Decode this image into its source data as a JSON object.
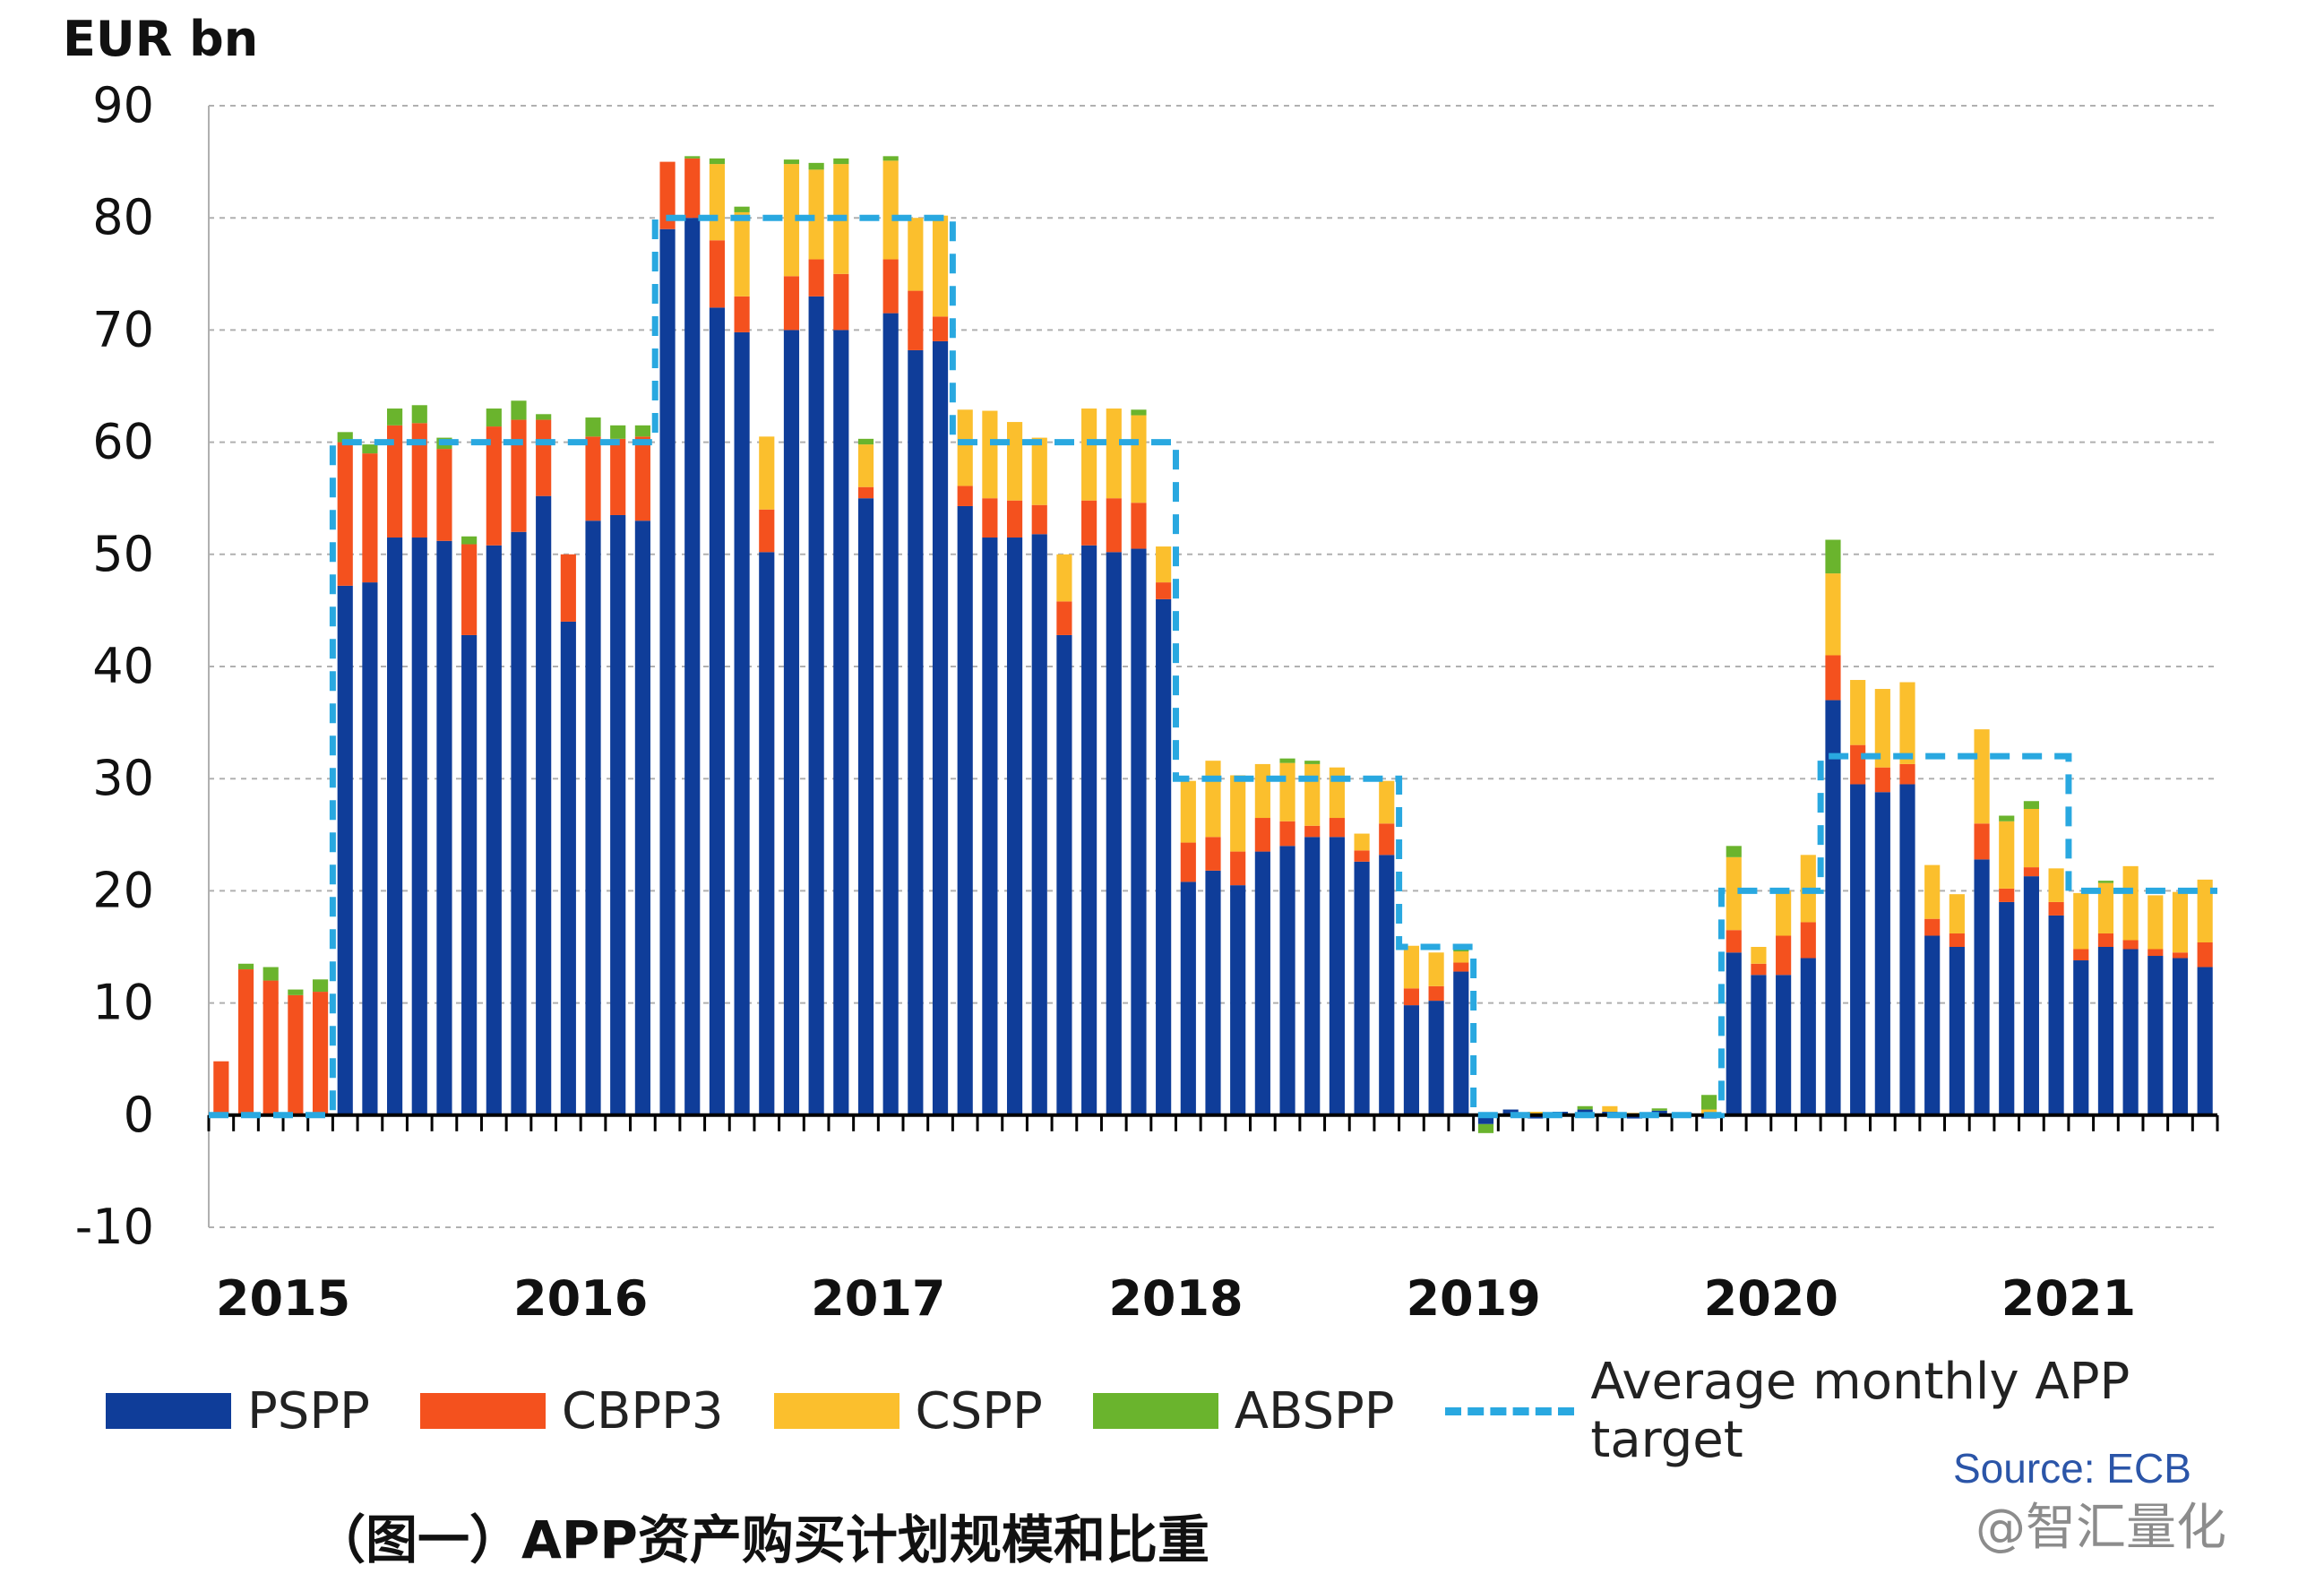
{
  "chart_data": {
    "type": "bar",
    "stacked": true,
    "yunit": "EUR bn",
    "ylim": [
      -10,
      90
    ],
    "yticks": [
      -10,
      0,
      10,
      20,
      30,
      40,
      50,
      60,
      70,
      80,
      90
    ],
    "grid": true,
    "legend_position": "bottom",
    "year_labels": [
      {
        "label": "2015",
        "at_month": 3
      },
      {
        "label": "2016",
        "at_month": 15
      },
      {
        "label": "2017",
        "at_month": 27
      },
      {
        "label": "2018",
        "at_month": 39
      },
      {
        "label": "2019",
        "at_month": 51
      },
      {
        "label": "2020",
        "at_month": 63
      },
      {
        "label": "2021",
        "at_month": 75
      }
    ],
    "n_months": 81,
    "series": [
      {
        "name": "PSPP",
        "color": "#0f3d99",
        "values": [
          0,
          0,
          0,
          0,
          0,
          47.2,
          47.5,
          51.5,
          51.5,
          51.2,
          42.8,
          50.8,
          52,
          55.2,
          44,
          53,
          53.5,
          53,
          79,
          80,
          72,
          69.8,
          50.2,
          70,
          73,
          70,
          55,
          71.5,
          68.2,
          69,
          54.3,
          51.5,
          51.5,
          51.8,
          42.8,
          50.8,
          50.2,
          50.5,
          46,
          20.8,
          21.8,
          20.5,
          23.5,
          24,
          24.8,
          24.8,
          22.6,
          23.2,
          9.8,
          10.2,
          12.8,
          -0.8,
          0.5,
          -0.3,
          0.3,
          0.5,
          0.3,
          -0.3,
          0.4,
          0.2,
          -0.3,
          14.5,
          12.5,
          12.5,
          14,
          37,
          29.5,
          28.8,
          29.5,
          16,
          15,
          22.8,
          19,
          21.3,
          17.8,
          13.8,
          15,
          14.8,
          14.2,
          14,
          13.2
        ]
      },
      {
        "name": "CBPP3",
        "color": "#f4511e",
        "values": [
          4.8,
          13,
          12,
          10.7,
          11,
          12.8,
          11.5,
          10,
          10.2,
          8.2,
          8.1,
          10.6,
          10,
          6.8,
          6,
          7.5,
          6.8,
          7.5,
          6,
          5.3,
          6,
          3.2,
          3.8,
          4.8,
          3.3,
          5,
          1,
          4.8,
          5.3,
          2.2,
          1.8,
          3.5,
          3.3,
          2.6,
          3,
          4,
          4.8,
          4.1,
          1.5,
          3.5,
          3,
          3,
          3,
          2.2,
          1,
          1.7,
          1,
          2.8,
          1.5,
          1.3,
          0.8,
          0,
          0,
          0,
          0,
          0,
          0,
          0,
          0,
          0,
          0,
          2,
          1,
          3.5,
          3.2,
          4,
          3.5,
          2.2,
          1.8,
          1.5,
          1.2,
          3.2,
          1.2,
          0.8,
          1.2,
          1,
          1.2,
          0.8,
          0.6,
          0.5,
          2.2
        ]
      },
      {
        "name": "CSPP",
        "color": "#fbbf2d",
        "values": [
          0,
          0,
          0,
          0,
          0,
          0,
          0,
          0,
          0,
          0,
          0,
          0,
          0,
          0,
          0,
          0,
          0,
          0,
          0,
          0,
          6.8,
          7.5,
          6.5,
          10,
          8,
          9.8,
          3.8,
          8.8,
          6.5,
          9,
          6.8,
          7.8,
          7,
          6,
          4.2,
          8.2,
          8,
          7.8,
          3.2,
          5.5,
          6.8,
          6.8,
          4.8,
          5.2,
          5.5,
          4.5,
          1.5,
          3.8,
          3.8,
          3,
          1,
          0,
          0,
          0.3,
          0,
          0,
          0.5,
          0.2,
          0,
          0,
          0.5,
          6.5,
          1.5,
          4,
          6,
          7.3,
          5.8,
          7,
          7.3,
          4.8,
          3.5,
          8.4,
          6,
          5.2,
          3,
          5,
          4.5,
          6.6,
          4.8,
          5.4,
          5.6
        ]
      },
      {
        "name": "ABSPP",
        "color": "#6ab42d",
        "values": [
          0,
          0.5,
          1.2,
          0.5,
          1.1,
          0.9,
          0.8,
          1.5,
          1.6,
          1,
          0.7,
          1.6,
          1.7,
          0.5,
          0,
          1.7,
          1.2,
          1,
          0,
          0.2,
          0.5,
          0.5,
          0,
          0.4,
          0.6,
          0.5,
          0.5,
          0.4,
          0,
          0,
          0,
          0,
          0,
          0,
          0,
          0,
          0,
          0.5,
          0,
          0,
          0,
          0,
          0,
          0.4,
          0.3,
          0,
          0,
          0,
          0,
          0,
          0.5,
          -0.8,
          0,
          0,
          0,
          0.3,
          0,
          0,
          0.2,
          0,
          1.3,
          1,
          0,
          0,
          0,
          3,
          0,
          0,
          0,
          0,
          0,
          0,
          0.5,
          0.7,
          0,
          0,
          0.2,
          0,
          0,
          0,
          0
        ]
      }
    ],
    "target": {
      "name": "Average monthly APP target",
      "color": "#29a8e0",
      "values": [
        0,
        0,
        0,
        0,
        0,
        60,
        60,
        60,
        60,
        60,
        60,
        60,
        60,
        60,
        60,
        60,
        60,
        60,
        80,
        80,
        80,
        80,
        80,
        80,
        80,
        80,
        80,
        80,
        80,
        80,
        60,
        60,
        60,
        60,
        60,
        60,
        60,
        60,
        60,
        30,
        30,
        30,
        30,
        30,
        30,
        30,
        30,
        30,
        15,
        15,
        15,
        0,
        0,
        0,
        0,
        0,
        0,
        0,
        0,
        0,
        0,
        20,
        20,
        20,
        20,
        32,
        32,
        32,
        32,
        32,
        32,
        32,
        32,
        32,
        32,
        20,
        20,
        20,
        20,
        20,
        20
      ]
    }
  },
  "legend": {
    "pspp": "PSPP",
    "cbpp3": "CBPP3",
    "cspp": "CSPP",
    "abspp": "ABSPP",
    "target": "Average monthly APP target"
  },
  "unit_label": "EUR bn",
  "source": "Source: ECB",
  "caption": "（图一）APP资产购买计划规模和比重",
  "watermark": "@智汇量化"
}
